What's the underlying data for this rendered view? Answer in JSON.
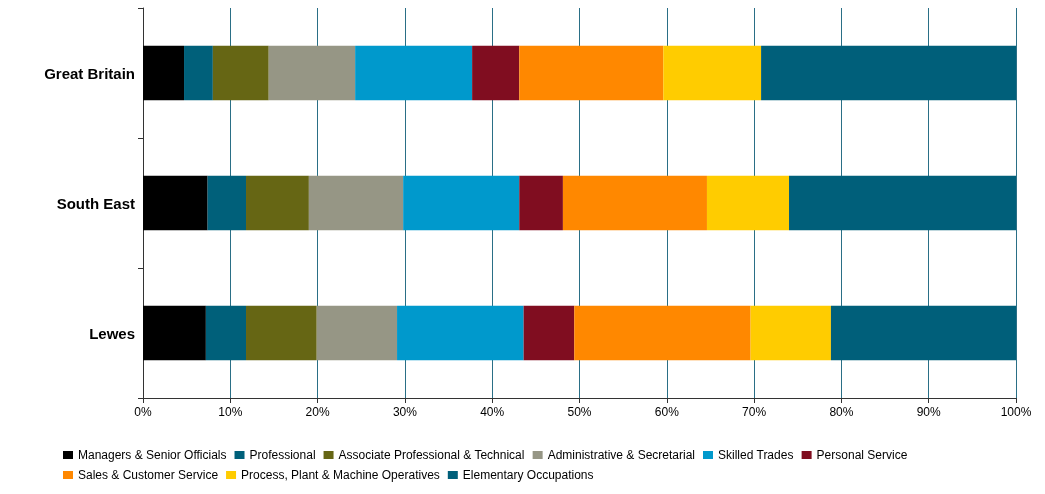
{
  "chart_data": {
    "type": "bar",
    "orientation": "horizontal",
    "stacked": true,
    "categories": [
      "Great Britain",
      "South East",
      "Lewes"
    ],
    "series": [
      {
        "name": "Managers & Senior Officials",
        "color": "#000000",
        "values": [
          4.7,
          7.4,
          7.2
        ]
      },
      {
        "name": "Professional",
        "color": "#00607a",
        "values": [
          3.3,
          4.4,
          4.6
        ]
      },
      {
        "name": "Associate Professional & Technical",
        "color": "#666614",
        "values": [
          6.4,
          7.2,
          8.1
        ]
      },
      {
        "name": "Administrative & Secretarial",
        "color": "#969685",
        "values": [
          9.9,
          10.8,
          9.2
        ]
      },
      {
        "name": "Skilled Trades",
        "color": "#0099cc",
        "values": [
          13.4,
          13.3,
          14.5
        ]
      },
      {
        "name": "Personal Service",
        "color": "#800d20",
        "values": [
          5.4,
          5.0,
          5.8
        ]
      },
      {
        "name": "Sales & Customer Service",
        "color": "#ff8800",
        "values": [
          16.5,
          16.5,
          20.2
        ]
      },
      {
        "name": "Process, Plant & Machine Operatives",
        "color": "#ffcc00",
        "values": [
          11.2,
          9.4,
          9.2
        ]
      },
      {
        "name": "Elementary Occupations",
        "color": "#005f7a",
        "values": [
          29.2,
          26.0,
          21.2
        ]
      }
    ],
    "xlim": [
      0,
      100
    ],
    "xticks": [
      {
        "value": 0,
        "label": "0%"
      },
      {
        "value": 10,
        "label": "10%"
      },
      {
        "value": 20,
        "label": "20%"
      },
      {
        "value": 30,
        "label": "30%"
      },
      {
        "value": 40,
        "label": "40%"
      },
      {
        "value": 50,
        "label": "50%"
      },
      {
        "value": 60,
        "label": "60%"
      },
      {
        "value": 70,
        "label": "70%"
      },
      {
        "value": 80,
        "label": "80%"
      },
      {
        "value": 90,
        "label": "90%"
      },
      {
        "value": 100,
        "label": "100%"
      }
    ],
    "grid": "x",
    "legend": "bottom"
  }
}
